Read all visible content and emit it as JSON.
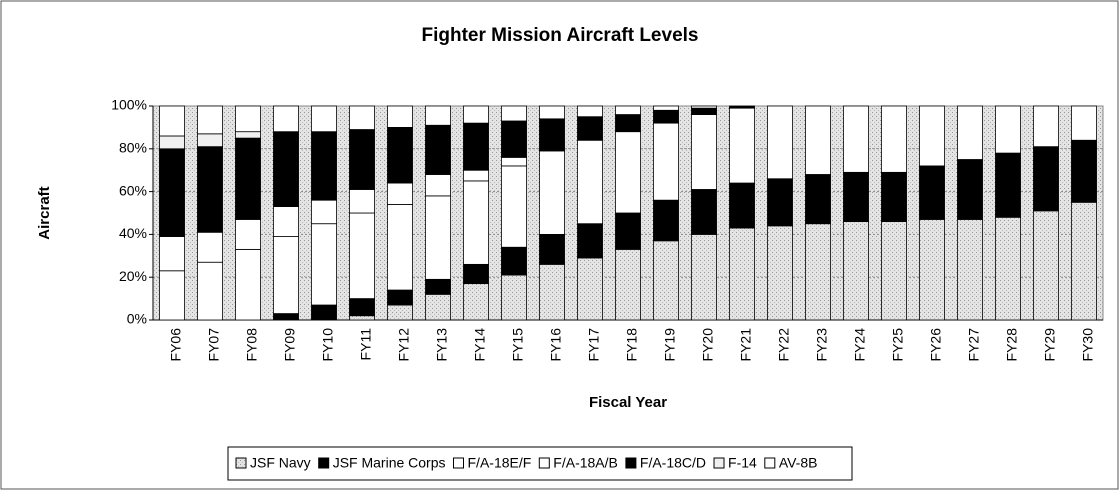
{
  "chart_data": {
    "type": "stacked-bar",
    "title": "Fighter Mission Aircraft Levels",
    "x_label": "Fiscal Year",
    "y_label": "Aircraft",
    "categories": [
      "FY06",
      "FY07",
      "FY08",
      "FY09",
      "FY10",
      "FY11",
      "FY12",
      "FY13",
      "FY14",
      "FY15",
      "FY16",
      "FY17",
      "FY18",
      "FY19",
      "FY20",
      "FY21",
      "FY22",
      "FY23",
      "FY24",
      "FY25",
      "FY26",
      "FY27",
      "FY28",
      "FY29",
      "FY30"
    ],
    "series": [
      {
        "name": "JSF Navy",
        "color": "#b4b4b4",
        "values": [
          0,
          0,
          0,
          0,
          0,
          2,
          7,
          12,
          17,
          21,
          26,
          29,
          33,
          37,
          40,
          43,
          44,
          45,
          46,
          46,
          47,
          47,
          48,
          51,
          55
        ]
      },
      {
        "name": "JSF Marine Corps",
        "color": "#000000",
        "values": [
          0,
          0,
          0,
          3,
          7,
          8,
          7,
          7,
          9,
          13,
          14,
          16,
          17,
          19,
          21,
          21,
          22,
          23,
          23,
          23,
          25,
          28,
          30,
          30,
          29
        ]
      },
      {
        "name": "F/A-18E/F",
        "color": "#ffffff",
        "values": [
          23,
          27,
          33,
          36,
          38,
          40,
          40,
          39,
          39,
          38,
          39,
          39,
          38,
          36,
          35,
          35,
          34,
          32,
          31,
          31,
          28,
          25,
          22,
          19,
          16
        ]
      },
      {
        "name": "F/A-18A/B",
        "color": "#ffffff",
        "values": [
          16,
          14,
          14,
          14,
          11,
          11,
          10,
          10,
          5,
          4,
          0,
          0,
          0,
          0,
          0,
          0,
          0,
          0,
          0,
          0,
          0,
          0,
          0,
          0,
          0
        ]
      },
      {
        "name": "F/A-18C/D",
        "color": "#000000",
        "values": [
          41,
          40,
          38,
          35,
          32,
          28,
          26,
          23,
          22,
          17,
          15,
          11,
          8,
          6,
          3,
          1,
          0,
          0,
          0,
          0,
          0,
          0,
          0,
          0,
          0
        ]
      },
      {
        "name": "F-14",
        "color": "#f0f0f0",
        "values": [
          6,
          6,
          3,
          0,
          0,
          0,
          0,
          0,
          0,
          0,
          0,
          0,
          0,
          0,
          0,
          0,
          0,
          0,
          0,
          0,
          0,
          0,
          0,
          0,
          0
        ]
      },
      {
        "name": "AV-8B",
        "color": "#ffffff",
        "values": [
          14,
          13,
          12,
          12,
          12,
          11,
          10,
          9,
          8,
          7,
          6,
          5,
          4,
          2,
          1,
          0,
          0,
          0,
          0,
          0,
          0,
          0,
          0,
          0,
          0
        ]
      }
    ],
    "ylim": [
      0,
      100
    ],
    "yticks": [
      {
        "value": 0,
        "label": "0%"
      },
      {
        "value": 20,
        "label": "20%"
      },
      {
        "value": 40,
        "label": "40%"
      },
      {
        "value": 60,
        "label": "60%"
      },
      {
        "value": 80,
        "label": "80%"
      },
      {
        "value": 100,
        "label": "100%"
      }
    ],
    "grid": true,
    "legend": "bottom"
  }
}
